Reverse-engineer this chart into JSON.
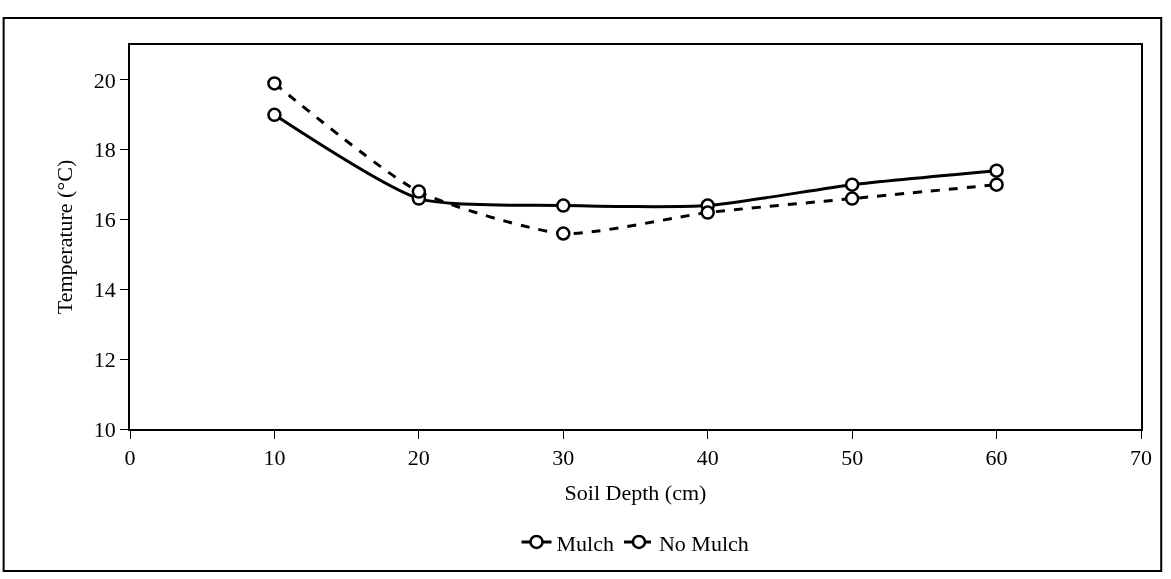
{
  "chart_data": {
    "type": "line",
    "xlabel": "Soil Depth (cm)",
    "ylabel": "Temperature (°C)",
    "x": [
      10,
      20,
      30,
      40,
      50,
      60
    ],
    "series": [
      {
        "name": "Mulch",
        "color": "#000000",
        "values": [
          19.0,
          16.6,
          16.4,
          16.4,
          17.0,
          17.4
        ],
        "line_style": "solid"
      },
      {
        "name": "No Mulch",
        "color": "#000000",
        "values": [
          19.9,
          16.8,
          15.6,
          16.2,
          16.6,
          17.0
        ],
        "line_style": "dashed"
      }
    ],
    "xlim": [
      0,
      70
    ],
    "xticks": [
      0,
      10,
      20,
      30,
      40,
      50,
      60,
      70
    ],
    "ylim": [
      10,
      21
    ],
    "yticks": [
      10,
      12,
      14,
      16,
      18,
      20
    ],
    "marker": "circle",
    "legend": "bottom"
  }
}
